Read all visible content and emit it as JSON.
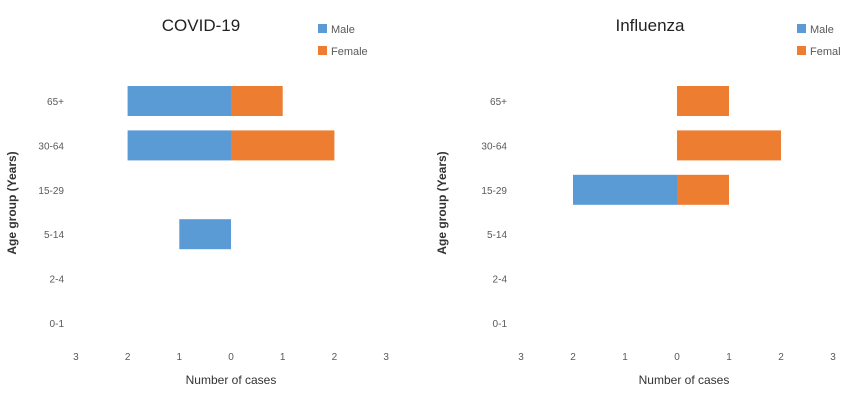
{
  "chart_data": [
    {
      "type": "bar",
      "orientation": "horizontal",
      "title": "COVID-19",
      "categories": [
        "65+",
        "30-64",
        "15-29",
        "5-14",
        "2-4",
        "0-1"
      ],
      "series": [
        {
          "name": "Male",
          "color": "#5B9BD5",
          "values": [
            2,
            2,
            0,
            1,
            0,
            0
          ]
        },
        {
          "name": "Female",
          "color": "#ED7D31",
          "values": [
            1,
            2,
            0,
            0,
            0,
            0
          ]
        }
      ],
      "xlabel": "Number of cases",
      "ylabel": "Age group (Years)",
      "xlim": [
        -3,
        3
      ],
      "xticks": [
        "3",
        "2",
        "1",
        "0",
        "1",
        "2",
        "3"
      ],
      "legend_position": "top-right",
      "grid": false
    },
    {
      "type": "bar",
      "orientation": "horizontal",
      "title": "Influenza",
      "categories": [
        "65+",
        "30-64",
        "15-29",
        "5-14",
        "2-4",
        "0-1"
      ],
      "series": [
        {
          "name": "Male",
          "color": "#5B9BD5",
          "values": [
            0,
            0,
            2,
            0,
            0,
            0
          ]
        },
        {
          "name": "Female",
          "color": "#ED7D31",
          "values": [
            1,
            2,
            1,
            0,
            0,
            0
          ]
        }
      ],
      "xlabel": "Number of cases",
      "ylabel": "Age group (Years)",
      "xlim": [
        -3,
        3
      ],
      "xticks": [
        "3",
        "2",
        "1",
        "0",
        "1",
        "2",
        "3"
      ],
      "legend_position": "top-right",
      "grid": false
    }
  ]
}
